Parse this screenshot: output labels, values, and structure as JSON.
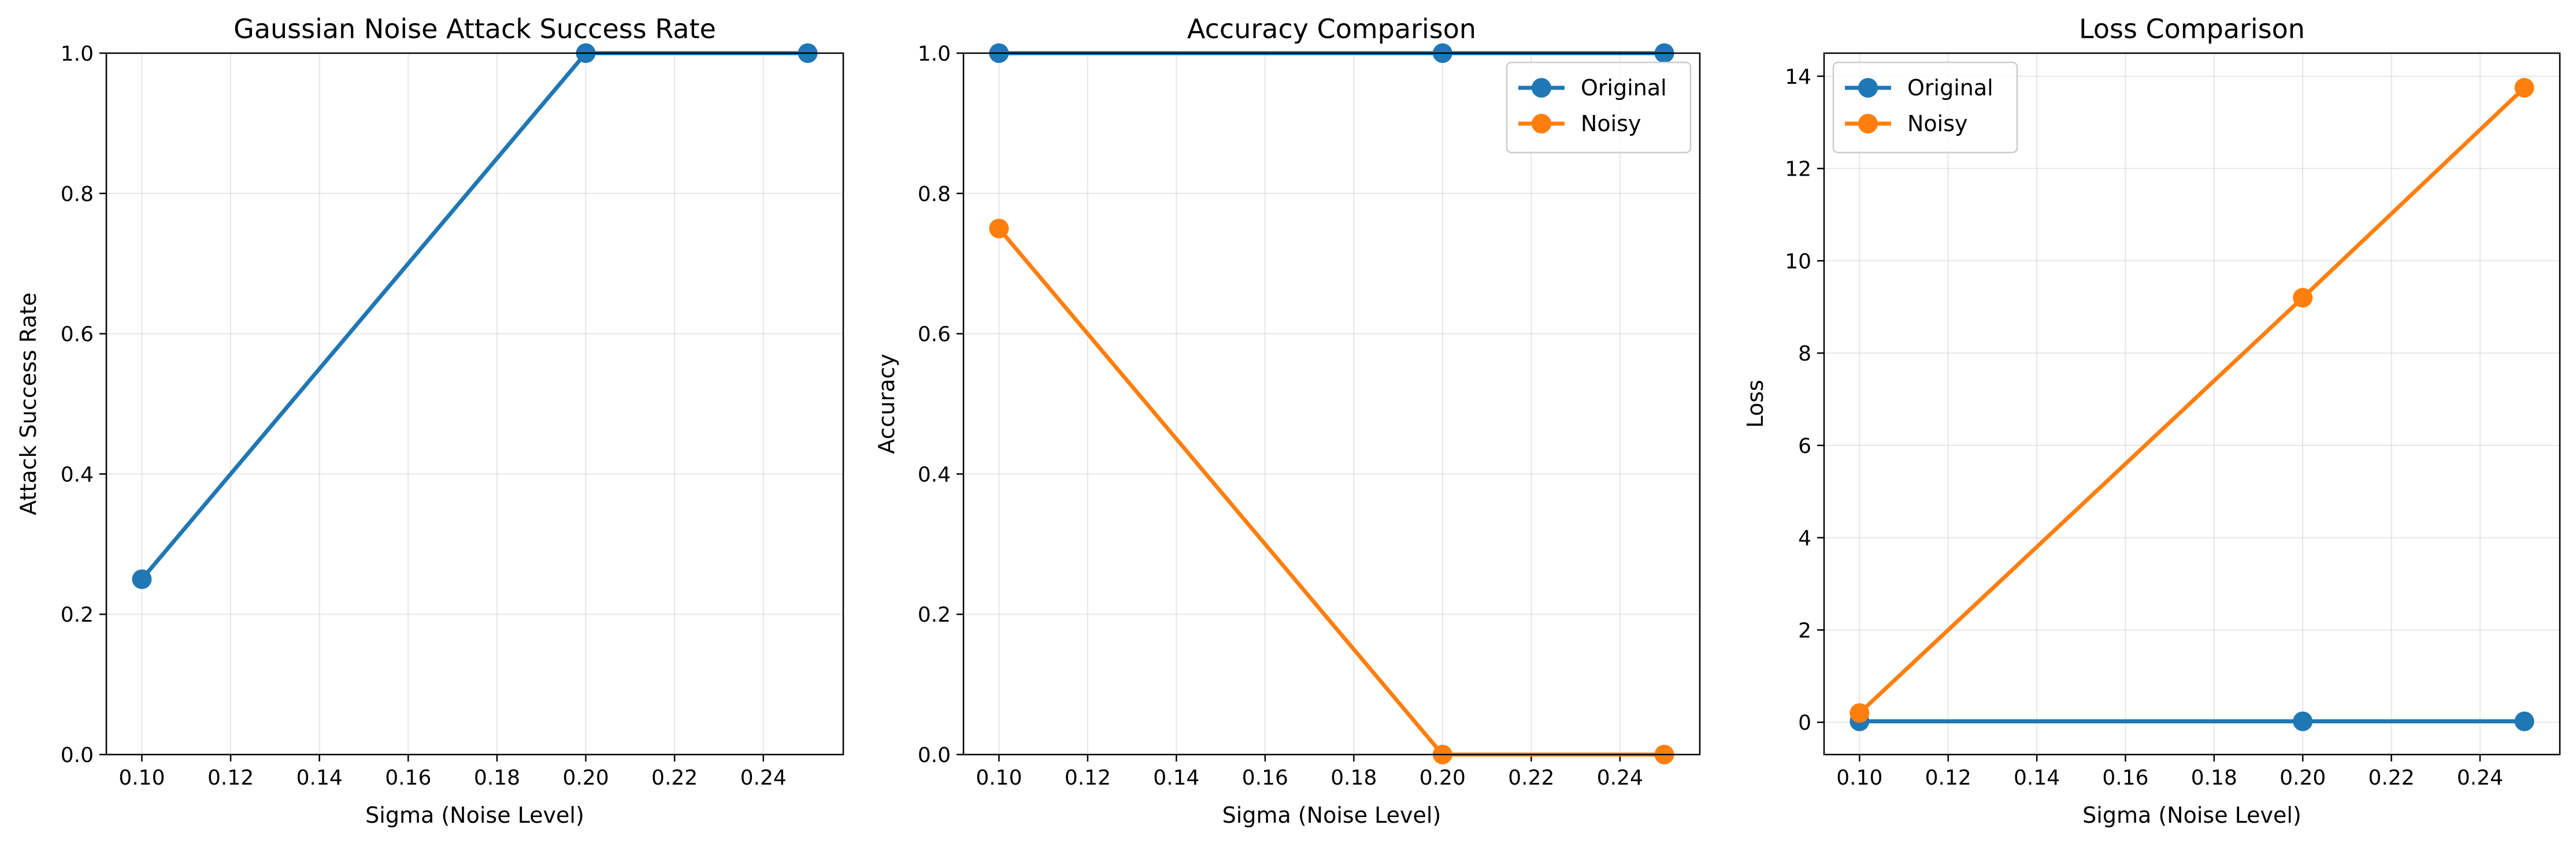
{
  "chart_data": [
    {
      "type": "line",
      "title": "Gaussian Noise Attack Success Rate",
      "xlabel": "Sigma (Noise Level)",
      "ylabel": "Attack Success Rate",
      "xlim": [
        0.092,
        0.258
      ],
      "ylim": [
        0.0,
        1.0
      ],
      "xticks": [
        "0.10",
        "0.12",
        "0.14",
        "0.16",
        "0.18",
        "0.20",
        "0.22",
        "0.24"
      ],
      "yticks": [
        "0.0",
        "0.2",
        "0.4",
        "0.6",
        "0.8",
        "1.0"
      ],
      "grid": true,
      "legend": null,
      "x": [
        0.1,
        0.2,
        0.25
      ],
      "series": [
        {
          "values": [
            0.25,
            1.0,
            1.0
          ],
          "color": "#1f77b4"
        }
      ]
    },
    {
      "type": "line",
      "title": "Accuracy Comparison",
      "xlabel": "Sigma (Noise Level)",
      "ylabel": "Accuracy",
      "xlim": [
        0.092,
        0.258
      ],
      "ylim": [
        0.0,
        1.0
      ],
      "xticks": [
        "0.10",
        "0.12",
        "0.14",
        "0.16",
        "0.18",
        "0.20",
        "0.22",
        "0.24"
      ],
      "yticks": [
        "0.0",
        "0.2",
        "0.4",
        "0.6",
        "0.8",
        "1.0"
      ],
      "grid": true,
      "legend": "top-right",
      "x": [
        0.1,
        0.2,
        0.25
      ],
      "series": [
        {
          "name": "Original",
          "values": [
            1.0,
            1.0,
            1.0
          ],
          "color": "#1f77b4"
        },
        {
          "name": "Noisy",
          "values": [
            0.75,
            0.0,
            0.0
          ],
          "color": "#ff7f0e"
        }
      ]
    },
    {
      "type": "line",
      "title": "Loss Comparison",
      "xlabel": "Sigma (Noise Level)",
      "ylabel": "Loss",
      "xlim": [
        0.092,
        0.258
      ],
      "ylim": [
        -0.7,
        14.5
      ],
      "xticks": [
        "0.10",
        "0.12",
        "0.14",
        "0.16",
        "0.18",
        "0.20",
        "0.22",
        "0.24"
      ],
      "yticks": [
        "0",
        "2",
        "4",
        "6",
        "8",
        "10",
        "12",
        "14"
      ],
      "grid": true,
      "legend": "top-left",
      "x": [
        0.1,
        0.2,
        0.25
      ],
      "series": [
        {
          "name": "Original",
          "values": [
            0.02,
            0.02,
            0.02
          ],
          "color": "#1f77b4"
        },
        {
          "name": "Noisy",
          "values": [
            0.2,
            9.2,
            13.75
          ],
          "color": "#ff7f0e"
        }
      ]
    }
  ]
}
